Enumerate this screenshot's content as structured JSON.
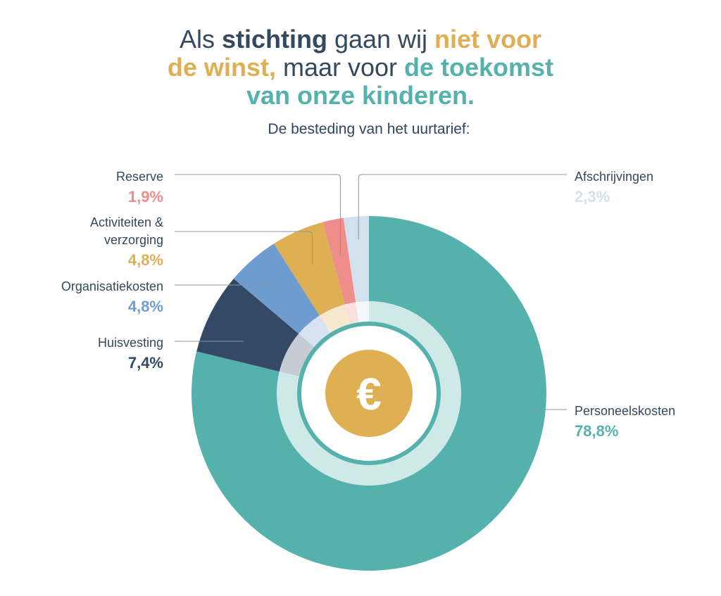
{
  "headline": {
    "p1": "Als ",
    "p2": "stichting",
    "p3": " gaan wij ",
    "p4": "niet voor",
    "p5": "de winst,",
    "p6": " maar voor ",
    "p7": "de toekomst",
    "p8": "van onze kinderen."
  },
  "colors": {
    "dark": "#34495e",
    "yellow": "#deb053",
    "teal": "#55b1ac"
  },
  "subtitle": "De besteding van het uurtarief:",
  "center_icon": "euro-icon",
  "chart_data": {
    "type": "pie",
    "title": "De besteding van het uurtarief:",
    "unit": "%",
    "slices": [
      {
        "label": "Personeelskosten",
        "value": 78.8,
        "display": "78,8%",
        "color": "#55b1ac"
      },
      {
        "label": "Huisvesting",
        "value": 7.4,
        "display": "7,4%",
        "color": "#344965"
      },
      {
        "label": "Organisatiekosten",
        "value": 4.8,
        "display": "4,8%",
        "color": "#6f9ccf"
      },
      {
        "label": "Activiteiten & verzorging",
        "label_lines": [
          "Activiteiten &",
          "verzorging"
        ],
        "value": 4.8,
        "display": "4,8%",
        "color": "#deb053"
      },
      {
        "label": "Reserve",
        "value": 1.9,
        "display": "1,9%",
        "color": "#ee8e8b"
      },
      {
        "label": "Afschrijvingen",
        "value": 2.3,
        "display": "2,3%",
        "color": "#d3e1ef"
      }
    ]
  }
}
